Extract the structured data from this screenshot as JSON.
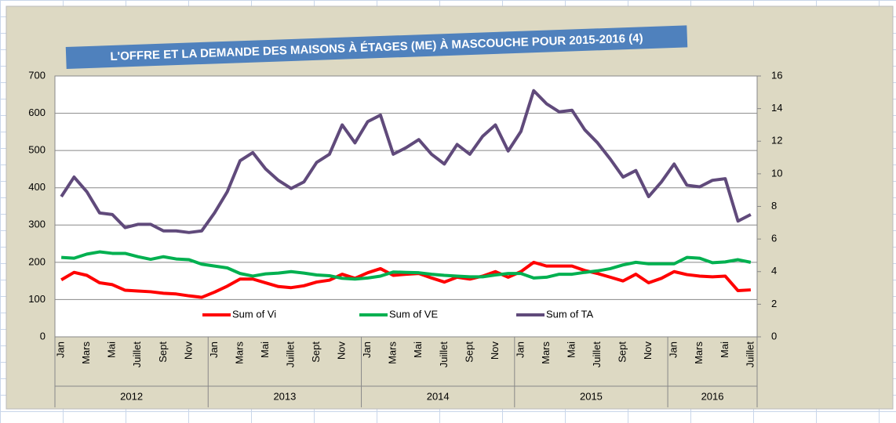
{
  "chart_data": {
    "type": "line",
    "title": "L'OFFRE ET LA DEMANDE DES MAISONS À ÉTAGES (ME) À MASCOUCHE POUR 2015-2016 (4)",
    "year_groups": [
      {
        "label": "2012",
        "months": [
          "Jan",
          null,
          "Mars",
          null,
          "Mai",
          null,
          "Juillet",
          null,
          "Sept",
          null,
          "Nov",
          null
        ]
      },
      {
        "label": "2013",
        "months": [
          "Jan",
          null,
          "Mars",
          null,
          "Mai",
          null,
          "Juillet",
          null,
          "Sept",
          null,
          "Nov",
          null
        ]
      },
      {
        "label": "2014",
        "months": [
          "Jan",
          null,
          "Mars",
          null,
          "Mai",
          null,
          "Juillet",
          null,
          "Sept",
          null,
          "Nov",
          null
        ]
      },
      {
        "label": "2015",
        "months": [
          "Jan",
          null,
          "Mars",
          null,
          "Mai",
          null,
          "Juillet",
          null,
          "Sept",
          null,
          "Nov",
          null
        ]
      },
      {
        "label": "2016",
        "months": [
          "Jan",
          null,
          "Mars",
          null,
          "Mai",
          null,
          "Juillet"
        ]
      }
    ],
    "series": [
      {
        "name": "Sum of Vi",
        "color": "#ff0000",
        "values": [
          153,
          173,
          165,
          145,
          140,
          125,
          123,
          121,
          117,
          115,
          110,
          106,
          120,
          136,
          155,
          155,
          145,
          135,
          132,
          137,
          147,
          152,
          168,
          157,
          172,
          183,
          165,
          168,
          170,
          158,
          147,
          160,
          155,
          163,
          175,
          160,
          175,
          200,
          190,
          190,
          190,
          178,
          170,
          160,
          150,
          168,
          145,
          157,
          175,
          167,
          163,
          161,
          163,
          124,
          126
        ]
      },
      {
        "name": "Sum of VE",
        "color": "#00b050",
        "values": [
          213,
          211,
          222,
          228,
          224,
          224,
          215,
          208,
          215,
          209,
          207,
          195,
          190,
          185,
          170,
          163,
          169,
          171,
          175,
          171,
          166,
          164,
          157,
          155,
          158,
          163,
          174,
          173,
          172,
          168,
          165,
          163,
          161,
          161,
          166,
          170,
          170,
          158,
          160,
          168,
          168,
          173,
          177,
          183,
          193,
          200,
          196,
          196,
          196,
          213,
          211,
          199,
          201,
          207,
          200
        ]
      },
      {
        "name": "Sum of TA",
        "color": "#604a7b",
        "axis": "y2",
        "values": [
          8.6,
          9.8,
          8.9,
          7.6,
          7.5,
          6.7,
          6.9,
          6.9,
          6.5,
          6.5,
          6.4,
          6.5,
          7.6,
          8.9,
          10.8,
          11.3,
          10.3,
          9.6,
          9.1,
          9.5,
          10.7,
          11.2,
          13.0,
          11.9,
          13.2,
          13.6,
          11.2,
          11.6,
          12.1,
          11.2,
          10.6,
          11.8,
          11.2,
          12.3,
          13.0,
          11.4,
          12.6,
          15.1,
          14.3,
          13.8,
          13.9,
          12.7,
          11.9,
          10.9,
          9.8,
          10.2,
          8.6,
          9.5,
          10.6,
          9.3,
          9.2,
          9.6,
          9.7,
          7.1,
          7.5
        ]
      }
    ],
    "ylim": [
      0,
      700
    ],
    "yticks": [
      0,
      100,
      200,
      300,
      400,
      500,
      600,
      700
    ],
    "y2lim": [
      0,
      16
    ],
    "y2ticks": [
      0,
      2,
      4,
      6,
      8,
      10,
      12,
      14,
      16
    ],
    "grid": true
  }
}
